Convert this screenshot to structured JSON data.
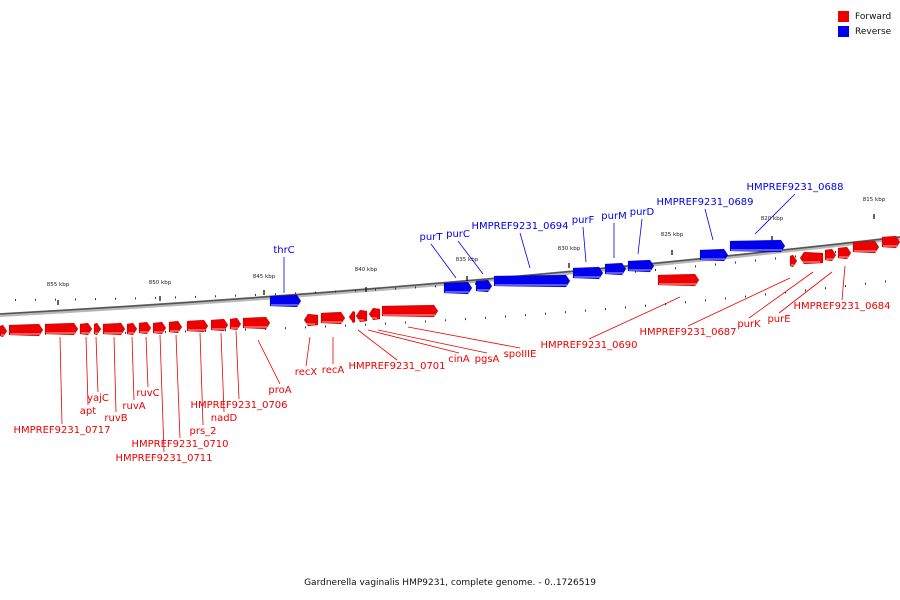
{
  "caption": "Gardnerella vaginalis HMP9231, complete genome. - 0..1726519",
  "legend": [
    {
      "label": "Forward",
      "color": "#ee0000"
    },
    {
      "label": "Reverse",
      "color": "#0000ee"
    }
  ],
  "colors": {
    "forward": "#ee0000",
    "reverse": "#0000ee",
    "backbone": "#555555"
  },
  "ticks": [
    "855 kbp",
    "850 kbp",
    "845 kbp",
    "840 kbp",
    "835 kbp",
    "830 kbp",
    "825 kbp",
    "820 kbp",
    "815 kbp"
  ],
  "genes": {
    "forward": [
      "HMPREF9231_0717",
      "apt",
      "yajC",
      "ruvB",
      "ruvA",
      "ruvC",
      "HMPREF9231_0711",
      "HMPREF9231_0710",
      "prs_2",
      "nadD",
      "HMPREF9231_0706",
      "proA",
      "recX",
      "recA",
      "HMPREF9231_0701",
      "cinA",
      "pgsA",
      "spoIIIE",
      "HMPREF9231_0690",
      "HMPREF9231_0687",
      "purK",
      "purE",
      "HMPREF9231_0684"
    ],
    "reverse": [
      "thrC",
      "purT",
      "purC",
      "HMPREF9231_0694",
      "purF",
      "purM",
      "purD",
      "HMPREF9231_0689",
      "HMPREF9231_0688"
    ]
  }
}
